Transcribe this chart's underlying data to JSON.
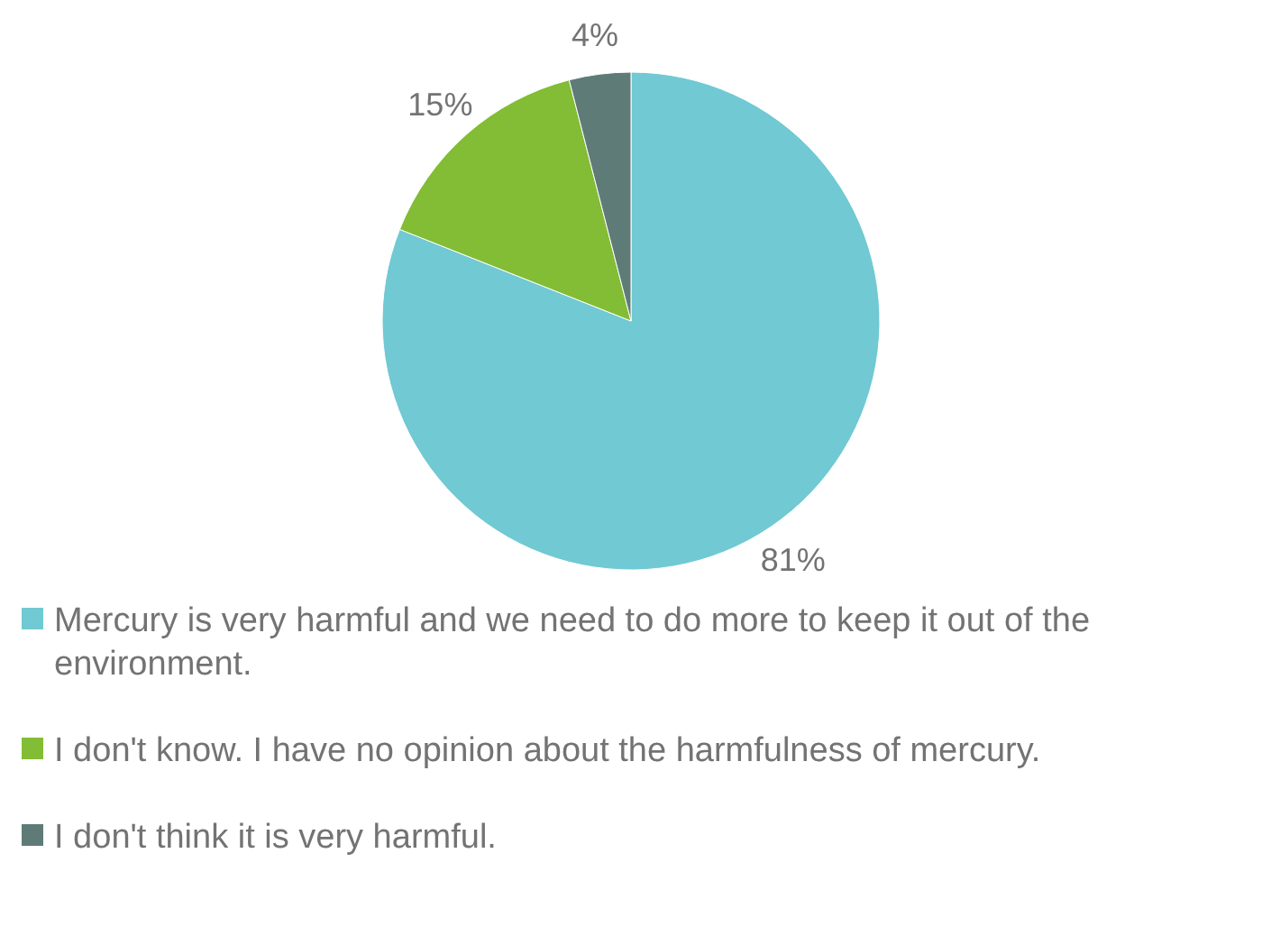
{
  "chart_data": {
    "type": "pie",
    "categories": [
      "Mercury is very harmful and we need to do more to keep it out of the environment.",
      "I don't know. I have no opinion about the harmfulness of mercury.",
      "I don't think it is very harmful."
    ],
    "values": [
      81,
      15,
      4
    ],
    "colors": [
      "#70c9d3",
      "#82bd35",
      "#5f7b77"
    ],
    "value_labels": [
      "81%",
      "15%",
      "4%"
    ],
    "legend": "bottom"
  }
}
